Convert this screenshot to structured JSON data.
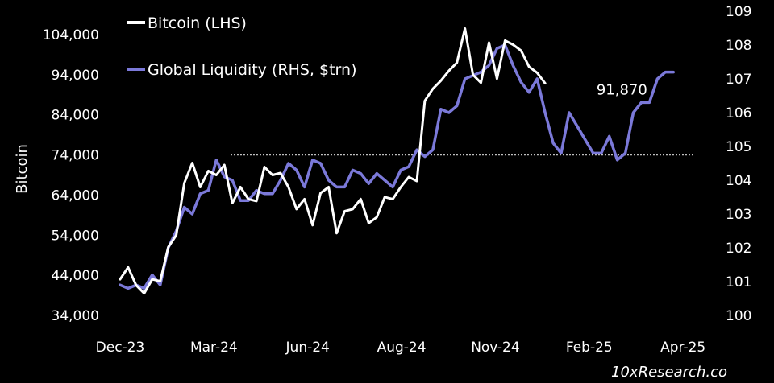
{
  "chart_data": {
    "type": "line",
    "ylabel": "Bitcoin",
    "y_left": {
      "ticks": [
        "104,000",
        "94,000",
        "84,000",
        "74,000",
        "64,000",
        "54,000",
        "44,000",
        "34,000"
      ],
      "range": [
        34000,
        104000
      ]
    },
    "y_right": {
      "ticks": [
        "109",
        "108",
        "107",
        "106",
        "105",
        "104",
        "103",
        "102",
        "101",
        "100"
      ],
      "range": [
        100,
        109
      ]
    },
    "x_ticks": [
      {
        "label": "Dec-23",
        "t": 0
      },
      {
        "label": "Mar-24",
        "t": 11.7
      },
      {
        "label": "Jun-24",
        "t": 23.4
      },
      {
        "label": "Aug-24",
        "t": 35.1
      },
      {
        "label": "Nov-24",
        "t": 46.8
      },
      {
        "label": "Feb-25",
        "t": 58.5
      },
      {
        "label": "Apr-25",
        "t": 70.2
      }
    ],
    "x_range": [
      -0.2,
      73.5
    ],
    "legend": {
      "placement": "top-left",
      "items": [
        "Bitcoin (LHS)",
        "Global Liquidity (RHS, $trn)"
      ]
    },
    "reference_line": {
      "y": 74000,
      "from_t": 13.8,
      "to_t": 71.5,
      "style": "dotted"
    },
    "annotation": {
      "text": "91,870",
      "t": 58.4,
      "y": 91870
    },
    "source": "10xResearch.co",
    "series": [
      {
        "name": "Bitcoin (LHS)",
        "axis": "left",
        "color": "#ffffff",
        "x": [
          0,
          1,
          2,
          3,
          4,
          5,
          6,
          7,
          8,
          9,
          10,
          11,
          12,
          13,
          14,
          15,
          16,
          17,
          18,
          19,
          20,
          21,
          22,
          23,
          24,
          25,
          26,
          27,
          28,
          29,
          30,
          31,
          32,
          33,
          34,
          35,
          36,
          37,
          38,
          39,
          40,
          41,
          42,
          43,
          44,
          45,
          46,
          47,
          48,
          49,
          50,
          51,
          52,
          53,
          54,
          55,
          56,
          57,
          58,
          58.6
        ],
        "values": [
          43000,
          46000,
          41500,
          39500,
          43000,
          42500,
          51000,
          54000,
          67000,
          72000,
          66000,
          70000,
          69000,
          71500,
          62000,
          66000,
          63000,
          62500,
          71000,
          69000,
          69500,
          66000,
          60500,
          63000,
          56500,
          64500,
          66000,
          54500,
          60000,
          60500,
          63000,
          57000,
          58500,
          63500,
          63000,
          66000,
          68500,
          67500,
          87500,
          90500,
          92500,
          95000,
          97000,
          105500,
          94000,
          92000,
          102000,
          93000,
          102500,
          101500,
          100000,
          96000,
          94500,
          91870,
          null,
          null,
          null,
          null,
          null,
          null
        ]
      },
      {
        "name": "Global Liquidity (RHS, $trn)",
        "axis": "right",
        "color": "#7b79d9",
        "x": [
          0,
          1,
          2,
          3,
          4,
          5,
          6,
          7,
          8,
          9,
          10,
          11,
          12,
          13,
          14,
          15,
          16,
          17,
          18,
          19,
          20,
          21,
          22,
          23,
          24,
          25,
          26,
          27,
          28,
          29,
          30,
          31,
          32,
          33,
          34,
          35,
          36,
          37,
          38,
          39,
          40,
          41,
          42,
          43,
          44,
          45,
          46,
          47,
          48,
          49,
          50,
          51,
          52,
          53,
          54,
          55,
          56,
          57,
          58,
          59,
          60,
          61,
          62,
          63,
          64,
          65,
          66,
          67,
          68,
          69,
          70,
          71,
          72
        ],
        "values": [
          100.9,
          100.8,
          100.9,
          100.8,
          101.2,
          100.9,
          102.0,
          102.5,
          103.2,
          103.0,
          103.6,
          103.7,
          104.6,
          104.1,
          104.0,
          103.4,
          103.4,
          103.7,
          103.6,
          103.6,
          104.0,
          104.5,
          104.3,
          103.8,
          104.6,
          104.5,
          104.0,
          103.8,
          103.8,
          104.3,
          104.2,
          103.9,
          104.2,
          104.0,
          103.8,
          104.3,
          104.4,
          104.9,
          104.7,
          104.9,
          106.1,
          106.0,
          106.2,
          107.0,
          107.1,
          107.2,
          107.4,
          107.9,
          108.0,
          107.4,
          106.9,
          106.6,
          107.0,
          106.0,
          105.1,
          104.8,
          106.0,
          105.6,
          105.2,
          104.8,
          104.8,
          105.3,
          104.6,
          104.8,
          106.0,
          106.3,
          106.3,
          107.0,
          107.2,
          107.2,
          null,
          null,
          null
        ]
      }
    ]
  }
}
